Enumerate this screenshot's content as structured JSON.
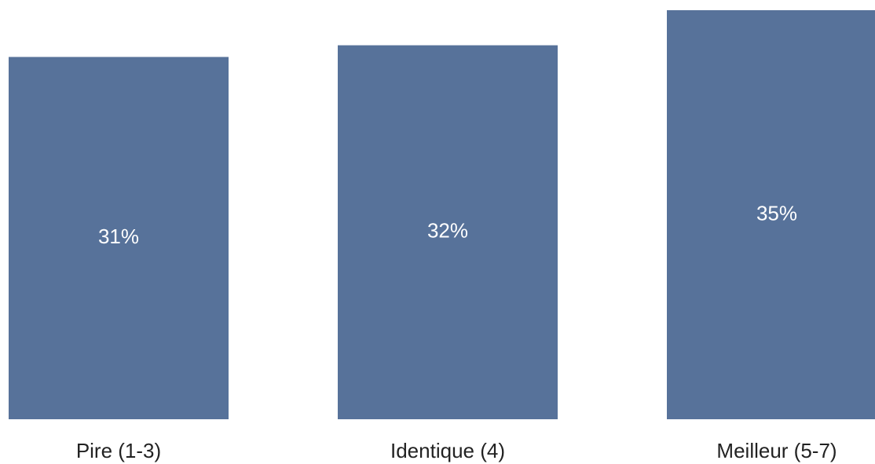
{
  "chart_data": {
    "type": "bar",
    "categories": [
      "Pire (1-3)",
      "Identique (4)",
      "Meilleur (5-7)"
    ],
    "values": [
      31,
      32,
      35
    ],
    "value_labels": [
      "31%",
      "32%",
      "35%"
    ],
    "ylim": [
      0,
      35
    ],
    "bar_color": "#57729a",
    "label_color": "#ffffff",
    "grid": false,
    "legend": "none",
    "title": "",
    "xlabel": "",
    "ylabel": ""
  }
}
